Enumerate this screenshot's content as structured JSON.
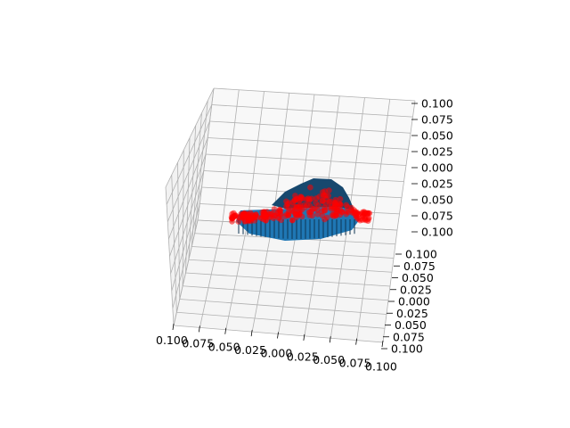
{
  "chart_data": {
    "type": "scatter",
    "title": "",
    "xlabel": "",
    "ylabel": "",
    "zlabel": "",
    "projection": "3d",
    "grid": true,
    "xlim": [
      -0.1,
      0.1
    ],
    "ylim": [
      -0.1,
      0.1
    ],
    "zlim": [
      -0.1,
      0.1
    ],
    "x_tick_labels": [
      "0.100",
      "0.075",
      "0.050",
      "0.025",
      "0.000",
      "0.025",
      "0.050",
      "0.075",
      "0.100"
    ],
    "y_tick_labels": [
      "0.100",
      "0.075",
      "0.050",
      "0.025",
      "0.000",
      "0.025",
      "0.050",
      "0.075",
      "0.100"
    ],
    "z_tick_labels": [
      "0.100",
      "0.075",
      "0.050",
      "0.025",
      "0.000",
      "0.025",
      "0.050",
      "0.075",
      "0.100"
    ],
    "surface": {
      "name": "",
      "color": "#1f77b4",
      "shape": "voxel mound centered near origin"
    },
    "points": {
      "color": "#ff0000",
      "marker": "o"
    }
  }
}
